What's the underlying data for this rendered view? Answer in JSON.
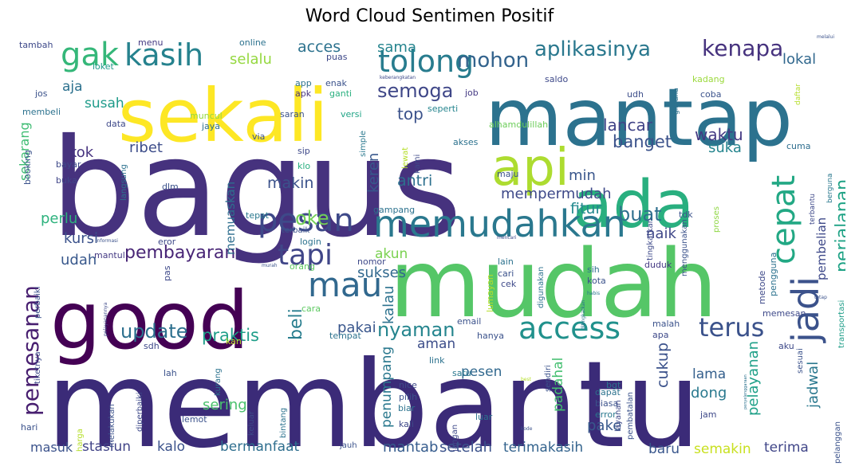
{
  "chart_data": {
    "type": "wordcloud",
    "title": "Word Cloud Sentimen Positif",
    "colormap": "viridis",
    "background": "#ffffff",
    "words": [
      {
        "text": "bagus",
        "weight": 100,
        "color": "#46327e"
      },
      {
        "text": "membantu",
        "weight": 98,
        "color": "#3b2b78"
      },
      {
        "text": "mudah",
        "weight": 92,
        "color": "#55c667"
      },
      {
        "text": "mantap",
        "weight": 80,
        "color": "#2c728e"
      },
      {
        "text": "good",
        "weight": 78,
        "color": "#440154"
      },
      {
        "text": "sekali",
        "weight": 70,
        "color": "#fde725"
      },
      {
        "text": "ada",
        "weight": 58,
        "color": "#29af7f"
      },
      {
        "text": "api",
        "weight": 45,
        "color": "#addc30"
      },
      {
        "text": "memudahkan",
        "weight": 40,
        "color": "#2a788e"
      },
      {
        "text": "access",
        "weight": 36,
        "color": "#21918c"
      },
      {
        "text": "cepat",
        "weight": 36,
        "color": "#22a884"
      },
      {
        "text": "jadi",
        "weight": 34,
        "color": "#3b528b"
      },
      {
        "text": "pesan",
        "weight": 32,
        "color": "#3e4989"
      },
      {
        "text": "mau",
        "weight": 32,
        "color": "#31688e"
      },
      {
        "text": "tolong",
        "weight": 30,
        "color": "#287c8e"
      },
      {
        "text": "kasih",
        "weight": 30,
        "color": "#26828e"
      },
      {
        "text": "gak",
        "weight": 30,
        "color": "#35b779"
      },
      {
        "text": "tapi",
        "weight": 28,
        "color": "#404688"
      },
      {
        "text": "terus",
        "weight": 28,
        "color": "#3b528b"
      },
      {
        "text": "pemesanan",
        "weight": 24,
        "color": "#481f70"
      },
      {
        "text": "aplikasinya",
        "weight": 22,
        "color": "#2a788e"
      },
      {
        "text": "kenapa",
        "weight": 22,
        "color": "#46327e"
      },
      {
        "text": "mohon",
        "weight": 22,
        "color": "#33638d"
      },
      {
        "text": "semoga",
        "weight": 20,
        "color": "#3f4788"
      },
      {
        "text": "update",
        "weight": 20,
        "color": "#2d708e"
      },
      {
        "text": "nyaman",
        "weight": 20,
        "color": "#25858e"
      },
      {
        "text": "perjalanan",
        "weight": 20,
        "color": "#20a386"
      },
      {
        "text": "pembayaran",
        "weight": 18,
        "color": "#482576"
      },
      {
        "text": "oke",
        "weight": 18,
        "color": "#73d056"
      },
      {
        "text": "buat",
        "weight": 18,
        "color": "#2e6f8e"
      },
      {
        "text": "banget",
        "weight": 17,
        "color": "#3b528b"
      },
      {
        "text": "praktis",
        "weight": 17,
        "color": "#1f9e89"
      },
      {
        "text": "beli",
        "weight": 17,
        "color": "#287d8e"
      },
      {
        "text": "waktu",
        "weight": 16,
        "color": "#443983"
      },
      {
        "text": "lancar",
        "weight": 16,
        "color": "#414487"
      },
      {
        "text": "acces",
        "weight": 16,
        "color": "#2c728e"
      },
      {
        "text": "sama",
        "weight": 15,
        "color": "#25848e"
      },
      {
        "text": "selalu",
        "weight": 15,
        "color": "#95d840"
      },
      {
        "text": "lokal",
        "weight": 15,
        "color": "#31688e"
      },
      {
        "text": "mempermudah",
        "weight": 15,
        "color": "#3e4989"
      },
      {
        "text": "makin",
        "weight": 15,
        "color": "#3b528b"
      },
      {
        "text": "fitur",
        "weight": 15,
        "color": "#23898e"
      },
      {
        "text": "antri",
        "weight": 15,
        "color": "#2d708e"
      },
      {
        "text": "naik",
        "weight": 15,
        "color": "#3f4788"
      },
      {
        "text": "min",
        "weight": 14,
        "color": "#39568c"
      },
      {
        "text": "suka",
        "weight": 14,
        "color": "#25858e"
      },
      {
        "text": "ribet",
        "weight": 14,
        "color": "#3d4d8a"
      },
      {
        "text": "udah",
        "weight": 14,
        "color": "#38588c"
      },
      {
        "text": "kursi",
        "weight": 14,
        "color": "#3b528b"
      },
      {
        "text": "perlu",
        "weight": 14,
        "color": "#2db27d"
      },
      {
        "text": "kok",
        "weight": 14,
        "color": "#46337f"
      },
      {
        "text": "susah",
        "weight": 14,
        "color": "#1e9b8a"
      },
      {
        "text": "aja",
        "weight": 14,
        "color": "#2c718e"
      },
      {
        "text": "sekarang",
        "weight": 13,
        "color": "#3fbc73"
      },
      {
        "text": "top",
        "weight": 15,
        "color": "#3b528b"
      },
      {
        "text": "keren",
        "weight": 15,
        "color": "#38588c"
      },
      {
        "text": "sukses",
        "weight": 15,
        "color": "#31688e"
      },
      {
        "text": "akun",
        "weight": 15,
        "color": "#7ad151"
      },
      {
        "text": "kalau",
        "weight": 14,
        "color": "#2c728e"
      },
      {
        "text": "pakai",
        "weight": 15,
        "color": "#39568c"
      },
      {
        "text": "aman",
        "weight": 14,
        "color": "#3d4e8a"
      },
      {
        "text": "padahal",
        "weight": 14,
        "color": "#44bf70"
      },
      {
        "text": "penumpang",
        "weight": 14,
        "color": "#2a788e"
      },
      {
        "text": "pesen",
        "weight": 14,
        "color": "#31688e"
      },
      {
        "text": "cukup",
        "weight": 15,
        "color": "#3b528b"
      },
      {
        "text": "lama",
        "weight": 15,
        "color": "#35608d"
      },
      {
        "text": "dong",
        "weight": 15,
        "color": "#29798e"
      },
      {
        "text": "jadwal",
        "weight": 15,
        "color": "#2a788e"
      },
      {
        "text": "pelayanan",
        "weight": 14,
        "color": "#1fa088"
      },
      {
        "text": "pembelian",
        "weight": 13,
        "color": "#3e4989"
      },
      {
        "text": "sering",
        "weight": 15,
        "color": "#4ac16d"
      },
      {
        "text": "pake",
        "weight": 15,
        "color": "#38598c"
      },
      {
        "text": "terimakasih",
        "weight": 15,
        "color": "#33638d"
      },
      {
        "text": "setelah",
        "weight": 15,
        "color": "#3b528b"
      },
      {
        "text": "mantab",
        "weight": 15,
        "color": "#365c8d"
      },
      {
        "text": "bermanfaat",
        "weight": 15,
        "color": "#2e6e8e"
      },
      {
        "text": "kalo",
        "weight": 15,
        "color": "#3b528b"
      },
      {
        "text": "stasiun",
        "weight": 15,
        "color": "#414487"
      },
      {
        "text": "masuk",
        "weight": 14,
        "color": "#3b528b"
      },
      {
        "text": "semakin",
        "weight": 15,
        "color": "#c8e020"
      },
      {
        "text": "baru",
        "weight": 15,
        "color": "#39568c"
      },
      {
        "text": "terima",
        "weight": 15,
        "color": "#404688"
      },
      {
        "text": "memuaskan",
        "weight": 13,
        "color": "#2e6e8e"
      },
      {
        "text": "menu",
        "weight": 9,
        "color": "#443a83"
      },
      {
        "text": "online",
        "weight": 9,
        "color": "#2c728e"
      },
      {
        "text": "tambah",
        "weight": 9,
        "color": "#3e4989"
      },
      {
        "text": "jos",
        "weight": 9,
        "color": "#3b528b"
      },
      {
        "text": "loket",
        "weight": 9,
        "color": "#1f9a8a"
      },
      {
        "text": "apk",
        "weight": 9,
        "color": "#46327e"
      },
      {
        "text": "puas",
        "weight": 9,
        "color": "#3e4989"
      },
      {
        "text": "app",
        "weight": 9,
        "color": "#2c728e"
      },
      {
        "text": "enak",
        "weight": 9,
        "color": "#3b528b"
      },
      {
        "text": "ganti",
        "weight": 9,
        "color": "#2ab07f"
      },
      {
        "text": "job",
        "weight": 9,
        "color": "#443983"
      },
      {
        "text": "saldo",
        "weight": 9,
        "color": "#3e4989"
      },
      {
        "text": "kadang",
        "weight": 9,
        "color": "#9bd93c"
      },
      {
        "text": "coba",
        "weight": 9,
        "color": "#3b528b"
      },
      {
        "text": "udh",
        "weight": 9,
        "color": "#3d4e8a"
      },
      {
        "text": "membeli",
        "weight": 9,
        "color": "#2c728e"
      },
      {
        "text": "data",
        "weight": 9,
        "color": "#3e4989"
      },
      {
        "text": "muncul",
        "weight": 9,
        "color": "#95d840"
      },
      {
        "text": "jaya",
        "weight": 9,
        "color": "#2e6f8e"
      },
      {
        "text": "saran",
        "weight": 9,
        "color": "#3b528b"
      },
      {
        "text": "versi",
        "weight": 9,
        "color": "#20a486"
      },
      {
        "text": "seperti",
        "weight": 9,
        "color": "#25848e"
      },
      {
        "text": "alhamdulillah",
        "weight": 9,
        "color": "#6ccd5a"
      },
      {
        "text": "via",
        "weight": 9,
        "color": "#3b528b"
      },
      {
        "text": "sip",
        "weight": 9,
        "color": "#3e4989"
      },
      {
        "text": "klo",
        "weight": 9,
        "color": "#29af7f"
      },
      {
        "text": "simple",
        "weight": 8,
        "color": "#2a788e"
      },
      {
        "text": "akses",
        "weight": 9,
        "color": "#2c728e"
      },
      {
        "text": "lewat",
        "weight": 8,
        "color": "#b5de2b"
      },
      {
        "text": "kami",
        "weight": 8,
        "color": "#3e4989"
      },
      {
        "text": "maju",
        "weight": 9,
        "color": "#3b528b"
      },
      {
        "text": "cuma",
        "weight": 9,
        "color": "#2e6e8e"
      },
      {
        "text": "bayar",
        "weight": 9,
        "color": "#3e4989"
      },
      {
        "text": "booking",
        "weight": 9,
        "color": "#3b528b"
      },
      {
        "text": "buka",
        "weight": 9,
        "color": "#404688"
      },
      {
        "text": "langsung",
        "weight": 8,
        "color": "#2c728e"
      },
      {
        "text": "dlm",
        "weight": 9,
        "color": "#3b528b"
      },
      {
        "text": "mantul",
        "weight": 9,
        "color": "#443983"
      },
      {
        "text": "tepat",
        "weight": 9,
        "color": "#2a788e"
      },
      {
        "text": "gampang",
        "weight": 9,
        "color": "#2c728e"
      },
      {
        "text": "tdk",
        "weight": 9,
        "color": "#3b528b"
      },
      {
        "text": "eror",
        "weight": 9,
        "color": "#3e4989"
      },
      {
        "text": "terbaik",
        "weight": 8,
        "color": "#3b528b"
      },
      {
        "text": "login",
        "weight": 9,
        "color": "#2c728e"
      },
      {
        "text": "tingkatkan",
        "weight": 8,
        "color": "#3e4989"
      },
      {
        "text": "menggunakan",
        "weight": 8,
        "color": "#3b528b"
      },
      {
        "text": "proses",
        "weight": 8,
        "color": "#8fd744"
      },
      {
        "text": "nomor",
        "weight": 9,
        "color": "#3e4989"
      },
      {
        "text": "orang",
        "weight": 9,
        "color": "#5ec962"
      },
      {
        "text": "lain",
        "weight": 9,
        "color": "#2c728e"
      },
      {
        "text": "cari",
        "weight": 9,
        "color": "#3b528b"
      },
      {
        "text": "cek",
        "weight": 9,
        "color": "#3e4989"
      },
      {
        "text": "sih",
        "weight": 9,
        "color": "#2e6e8e"
      },
      {
        "text": "kota",
        "weight": 9,
        "color": "#3b528b"
      },
      {
        "text": "duduk",
        "weight": 9,
        "color": "#443983"
      },
      {
        "text": "metode",
        "weight": 9,
        "color": "#3e4989"
      },
      {
        "text": "pengguna",
        "weight": 9,
        "color": "#2c728e"
      },
      {
        "text": "perbaiki",
        "weight": 8,
        "color": "#3b528b"
      },
      {
        "text": "pas",
        "weight": 9,
        "color": "#3e4989"
      },
      {
        "text": "cara",
        "weight": 9,
        "color": "#5ec962"
      },
      {
        "text": "email",
        "weight": 9,
        "color": "#3b528b"
      },
      {
        "text": "lumayan",
        "weight": 9,
        "color": "#b5de2b"
      },
      {
        "text": "digunakan",
        "weight": 8,
        "color": "#2c728e"
      },
      {
        "text": "habis",
        "weight": 6,
        "color": "#2a788e"
      },
      {
        "text": "memesan",
        "weight": 9,
        "color": "#3e4989"
      },
      {
        "text": "transportasi",
        "weight": 8,
        "color": "#1f9e89"
      },
      {
        "text": "malah",
        "weight": 9,
        "color": "#3b528b"
      },
      {
        "text": "apa",
        "weight": 9,
        "color": "#3e4989"
      },
      {
        "text": "tempat",
        "weight": 9,
        "color": "#2c728e"
      },
      {
        "text": "hanya",
        "weight": 9,
        "color": "#3b528b"
      },
      {
        "text": "sdh",
        "weight": 9,
        "color": "#3e4989"
      },
      {
        "text": "kan",
        "weight": 9,
        "color": "#b5de2b"
      },
      {
        "text": "lah",
        "weight": 9,
        "color": "#3b528b"
      },
      {
        "text": "link",
        "weight": 9,
        "color": "#2c728e"
      },
      {
        "text": "nice",
        "weight": 9,
        "color": "#3e4989"
      },
      {
        "text": "pilih",
        "weight": 9,
        "color": "#3b528b"
      },
      {
        "text": "biar",
        "weight": 9,
        "color": "#2c728e"
      },
      {
        "text": "kali",
        "weight": 9,
        "color": "#3e4989"
      },
      {
        "text": "satu",
        "weight": 9,
        "color": "#2a788e"
      },
      {
        "text": "sendiri",
        "weight": 8,
        "color": "#3b528b"
      },
      {
        "text": "bgt",
        "weight": 9,
        "color": "#2c728e"
      },
      {
        "text": "aku",
        "weight": 9,
        "color": "#3e4989"
      },
      {
        "text": "sesuai",
        "weight": 8,
        "color": "#3b528b"
      },
      {
        "text": "tiketnya",
        "weight": 8,
        "color": "#3e4989"
      },
      {
        "text": "dapat",
        "weight": 9,
        "color": "#2c728e"
      },
      {
        "text": "biasa",
        "weight": 9,
        "color": "#3b528b"
      },
      {
        "text": "error",
        "weight": 9,
        "color": "#2a788e"
      },
      {
        "text": "layanan",
        "weight": 8,
        "color": "#3e4989"
      },
      {
        "text": "pembatalan",
        "weight": 8,
        "color": "#3b528b"
      },
      {
        "text": "jam",
        "weight": 9,
        "color": "#3e4989"
      },
      {
        "text": "hari",
        "weight": 9,
        "color": "#3b528b"
      },
      {
        "text": "harga",
        "weight": 8,
        "color": "#b5de2b"
      },
      {
        "text": "melakukan",
        "weight": 8,
        "color": "#3b528b"
      },
      {
        "text": "diperbaiki",
        "weight": 8,
        "color": "#3e4989"
      },
      {
        "text": "kurang",
        "weight": 8,
        "color": "#2c728e"
      },
      {
        "text": "lemot",
        "weight": 9,
        "color": "#3b528b"
      },
      {
        "text": "keluar",
        "weight": 8,
        "color": "#3e4989"
      },
      {
        "text": "bintang",
        "weight": 8,
        "color": "#2c728e"
      },
      {
        "text": "jauh",
        "weight": 8,
        "color": "#3b528b"
      },
      {
        "text": "jangan",
        "weight": 8,
        "color": "#3e4989"
      },
      {
        "text": "luar",
        "weight": 9,
        "color": "#2c728e"
      },
      {
        "text": "pelanggan",
        "weight": 8,
        "color": "#3b528b"
      },
      {
        "text": "keberangkatan",
        "weight": 5,
        "color": "#3e4989"
      },
      {
        "text": "melalui",
        "weight": 5,
        "color": "#3b528b"
      },
      {
        "text": "gimana",
        "weight": 7,
        "color": "#2c728e"
      },
      {
        "text": "daftar",
        "weight": 7,
        "color": "#b5de2b"
      },
      {
        "text": "berguna",
        "weight": 8,
        "color": "#2a788e"
      },
      {
        "text": "terbantu",
        "weight": 8,
        "color": "#3e4989"
      },
      {
        "text": "informasi",
        "weight": 5,
        "color": "#3b528b"
      },
      {
        "text": "mencari",
        "weight": 5,
        "color": "#3e4989"
      },
      {
        "text": "murah",
        "weight": 5,
        "color": "#3b528b"
      },
      {
        "text": "ditingkatkan",
        "weight": 5,
        "color": "#2c728e"
      },
      {
        "text": "pelayanannya",
        "weight": 5,
        "color": "#3e4989"
      },
      {
        "text": "tetap",
        "weight": 5,
        "color": "#3b528b"
      },
      {
        "text": "penyelenggaraan",
        "weight": 4,
        "color": "#2c728e"
      },
      {
        "text": "best",
        "weight": 5,
        "color": "#b5de2b"
      },
      {
        "text": "kode",
        "weight": 5,
        "color": "#3b528b"
      }
    ]
  }
}
